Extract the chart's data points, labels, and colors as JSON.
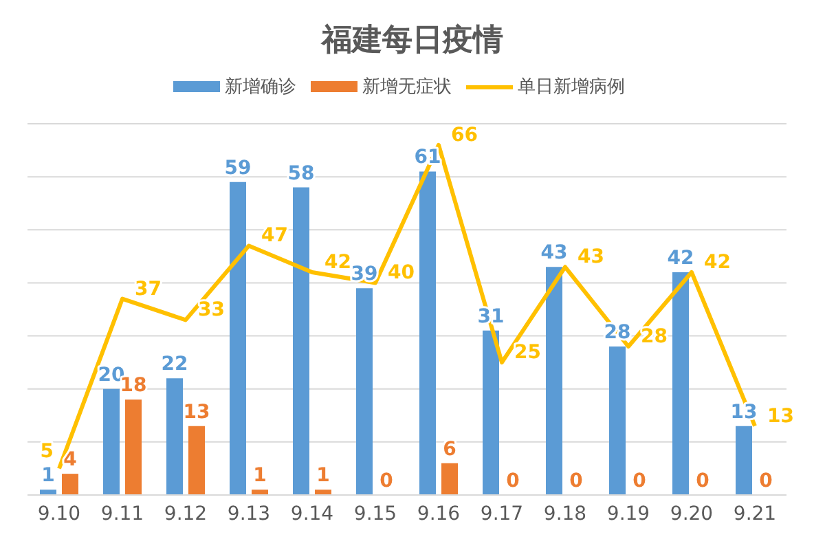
{
  "chart_data": {
    "type": "bar",
    "title": "福建每日疫情",
    "categories": [
      "9.10",
      "9.11",
      "9.12",
      "9.13",
      "9.14",
      "9.15",
      "9.16",
      "9.17",
      "9.18",
      "9.19",
      "9.20",
      "9.21"
    ],
    "series": [
      {
        "name": "新增确诊",
        "color": "#5b9bd5",
        "values": [
          1,
          20,
          22,
          59,
          58,
          39,
          61,
          31,
          43,
          28,
          42,
          13
        ]
      },
      {
        "name": "新增无症状",
        "color": "#ed7d31",
        "values": [
          4,
          18,
          13,
          1,
          1,
          0,
          6,
          0,
          0,
          0,
          0,
          0
        ]
      },
      {
        "name": "单日新增病例",
        "type": "line",
        "color": "#ffc000",
        "values": [
          5,
          37,
          33,
          47,
          42,
          40,
          66,
          25,
          43,
          28,
          42,
          13
        ]
      }
    ],
    "tick_labels": "x",
    "grid": "y",
    "legend": "top",
    "data_labels": true,
    "marker": "none"
  }
}
